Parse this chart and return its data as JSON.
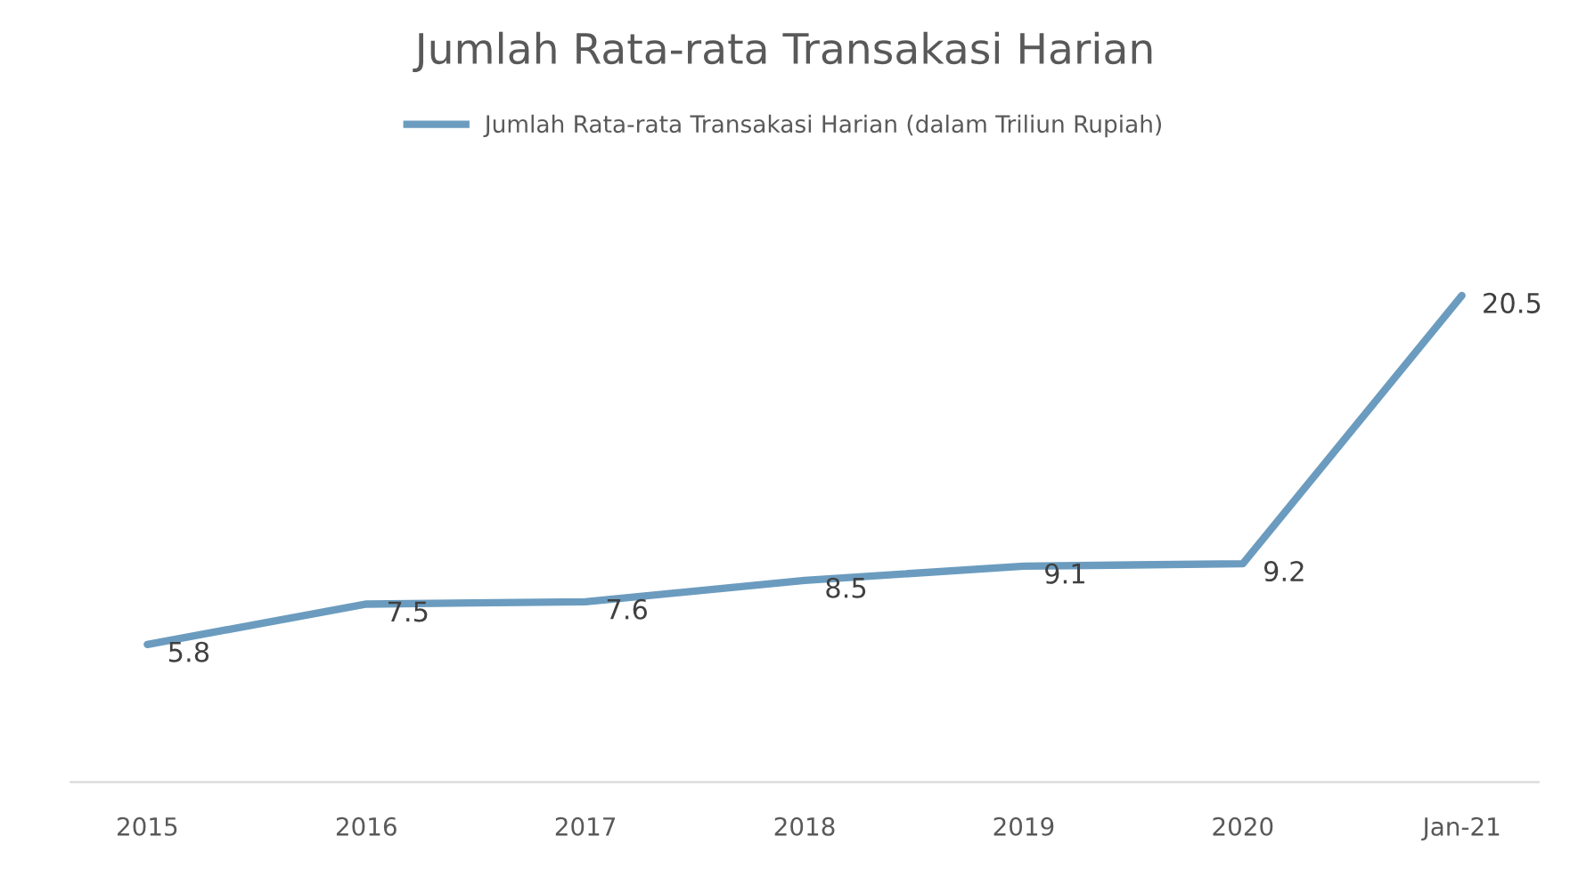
{
  "chart_data": {
    "type": "line",
    "title": "Jumlah Rata-rata Transakasi Harian",
    "categories": [
      "2015",
      "2016",
      "2017",
      "2018",
      "2019",
      "2020",
      "Jan-21"
    ],
    "series": [
      {
        "name": "Jumlah Rata-rata Transakasi Harian (dalam Triliun Rupiah)",
        "color": "#6b9cbf",
        "values": [
          5.8,
          7.5,
          7.6,
          8.5,
          9.1,
          9.2,
          20.5
        ]
      }
    ],
    "data_labels": true,
    "legend": "top",
    "grid": false,
    "tick_labels": "x",
    "marker": "none",
    "line_style": "solid"
  }
}
